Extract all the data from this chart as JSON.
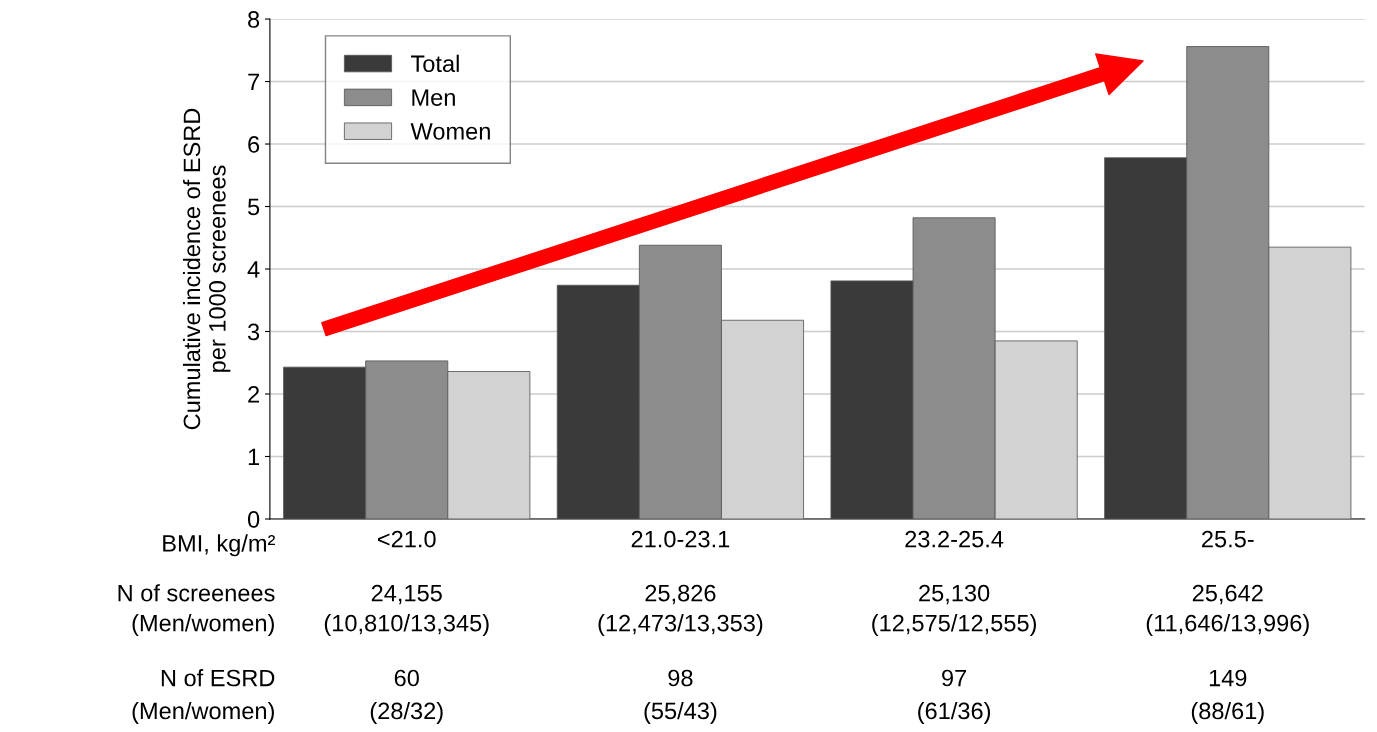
{
  "chart_data": {
    "type": "bar",
    "categories": [
      "<21.0",
      "21.0-23.1",
      "23.2-25.4",
      "25.5-"
    ],
    "xlabel": "BMI, kg/m²",
    "ylabel": "Cumulative incidence of ESRD\nper 1000 screenees",
    "series": [
      {
        "name": "Total",
        "color": "#3a3a3a",
        "values": [
          2.43,
          3.74,
          3.81,
          5.78
        ]
      },
      {
        "name": "Men",
        "color": "#8c8c8c",
        "values": [
          2.53,
          4.38,
          4.82,
          7.56
        ]
      },
      {
        "name": "Women",
        "color": "#d2d2d2",
        "values": [
          2.36,
          3.18,
          2.85,
          4.35
        ]
      }
    ],
    "ylim": [
      0,
      8
    ],
    "yticks": [
      0,
      1,
      2,
      3,
      4,
      5,
      6,
      7,
      8
    ],
    "grid": "y",
    "legend": "top left",
    "annotations": [
      "N of screenees",
      "24,155",
      "25,826",
      "25,130",
      "25,642",
      "(Men/women)",
      "(10,810/13,345)",
      "(12,473/13,353)",
      "(12,575/12,555)",
      "(11,646/13,996)",
      "N of ESRD",
      "60",
      "98",
      "97",
      "149",
      "(Men/women)",
      "(28/32)",
      "(55/43)",
      "(61/36)",
      "(88/61)"
    ]
  }
}
